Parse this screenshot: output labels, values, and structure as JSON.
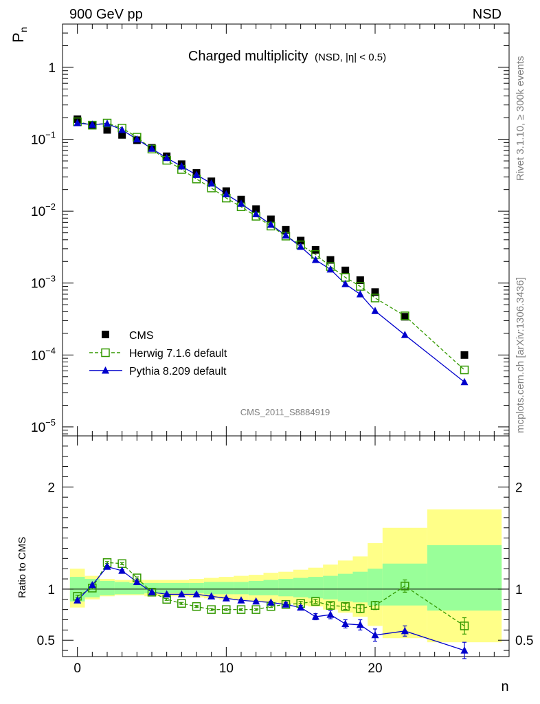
{
  "header": {
    "left_label": "900 GeV pp",
    "right_label": "NSD"
  },
  "side_labels": {
    "rivet": "Rivet 3.1.10, ≥ 300k events",
    "mcplots": "mcplots.cern.ch [arXiv:1306.3436]"
  },
  "watermark": "CMS_2011_S8884919",
  "colors": {
    "cms": "#000000",
    "herwig": "#339900",
    "pythia": "#0000cc",
    "band_inner": "#99ff99",
    "band_outer": "#ffff88"
  },
  "chart_data": [
    {
      "type": "scatter",
      "title": "Charged multiplicity",
      "title_suffix": "(NSD, |η| < 0.5)",
      "xlabel": "n",
      "ylabel": "P",
      "ylabel_sub": "n",
      "yscale": "log",
      "xlim": [
        -1,
        29
      ],
      "ylim": [
        7.5e-06,
        4
      ],
      "y_ticks": [
        {
          "value": 1e-05,
          "base": "10",
          "exp": "−5"
        },
        {
          "value": 0.0001,
          "base": "10",
          "exp": "−4"
        },
        {
          "value": 0.001,
          "base": "10",
          "exp": "−3"
        },
        {
          "value": 0.01,
          "base": "10",
          "exp": "−2"
        },
        {
          "value": 0.1,
          "base": "10",
          "exp": "−1"
        },
        {
          "value": 1,
          "base": "1",
          "exp": ""
        }
      ],
      "legend_position": "bottom-left",
      "series": [
        {
          "name": "CMS",
          "marker": "filled-square",
          "x": [
            0,
            1,
            2,
            3,
            4,
            5,
            6,
            7,
            8,
            9,
            10,
            11,
            12,
            13,
            14,
            15,
            16,
            17,
            18,
            19,
            20,
            22,
            26
          ],
          "y": [
            0.19,
            0.155,
            0.135,
            0.115,
            0.097,
            0.076,
            0.058,
            0.045,
            0.034,
            0.026,
            0.019,
            0.0145,
            0.0107,
            0.0077,
            0.0055,
            0.0039,
            0.0029,
            0.0021,
            0.0015,
            0.0011,
            0.00075,
            0.00034,
            0.0001
          ]
        },
        {
          "name": "Herwig 7.1.6 default",
          "marker": "open-square",
          "line": "dashed",
          "x": [
            0,
            1,
            2,
            3,
            4,
            5,
            6,
            7,
            8,
            9,
            10,
            11,
            12,
            13,
            14,
            15,
            16,
            17,
            18,
            19,
            20,
            22,
            26
          ],
          "y": [
            0.175,
            0.157,
            0.168,
            0.143,
            0.107,
            0.073,
            0.051,
            0.038,
            0.028,
            0.021,
            0.0152,
            0.0115,
            0.0085,
            0.0062,
            0.0045,
            0.0034,
            0.0025,
            0.0017,
            0.0012,
            0.0009,
            0.00062,
            0.00035,
            6.2e-05
          ]
        },
        {
          "name": "Pythia 8.209 default",
          "marker": "filled-triangle",
          "line": "solid",
          "x": [
            0,
            1,
            2,
            3,
            4,
            5,
            6,
            7,
            8,
            9,
            10,
            11,
            12,
            13,
            14,
            15,
            16,
            17,
            18,
            19,
            20,
            22,
            26
          ],
          "y": [
            0.168,
            0.16,
            0.165,
            0.135,
            0.1,
            0.074,
            0.055,
            0.042,
            0.032,
            0.0243,
            0.0172,
            0.0127,
            0.0091,
            0.0065,
            0.0046,
            0.0032,
            0.0021,
            0.00155,
            0.00097,
            0.0007,
            0.00041,
            0.00019,
            4.2e-05
          ]
        }
      ]
    },
    {
      "type": "line",
      "ylabel": "Ratio to CMS",
      "xlabel": "n",
      "xlim": [
        -1,
        29
      ],
      "ylim": [
        0.34,
        2.5
      ],
      "x_ticks": [
        0,
        10,
        20
      ],
      "y_ticks": [
        {
          "value": 0.5,
          "label": "0.5"
        },
        {
          "value": 1,
          "label": "1"
        },
        {
          "value": 2,
          "label": "2"
        }
      ],
      "reference_line": 1,
      "bands": [
        {
          "x0": -0.5,
          "x1": 0.5,
          "inner": [
            0.88,
            1.12
          ],
          "outer": [
            0.82,
            1.2
          ]
        },
        {
          "x0": 0.5,
          "x1": 1.5,
          "inner": [
            0.92,
            1.1
          ],
          "outer": [
            0.9,
            1.13
          ]
        },
        {
          "x0": 1.5,
          "x1": 2.5,
          "inner": [
            0.94,
            1.08
          ],
          "outer": [
            0.93,
            1.1
          ]
        },
        {
          "x0": 2.5,
          "x1": 3.5,
          "inner": [
            0.95,
            1.07
          ],
          "outer": [
            0.94,
            1.09
          ]
        },
        {
          "x0": 3.5,
          "x1": 4.5,
          "inner": [
            0.95,
            1.06
          ],
          "outer": [
            0.94,
            1.09
          ]
        },
        {
          "x0": 4.5,
          "x1": 5.5,
          "inner": [
            0.96,
            1.06
          ],
          "outer": [
            0.93,
            1.09
          ]
        },
        {
          "x0": 5.5,
          "x1": 6.5,
          "inner": [
            0.96,
            1.06
          ],
          "outer": [
            0.93,
            1.09
          ]
        },
        {
          "x0": 6.5,
          "x1": 7.5,
          "inner": [
            0.96,
            1.06
          ],
          "outer": [
            0.93,
            1.09
          ]
        },
        {
          "x0": 7.5,
          "x1": 8.5,
          "inner": [
            0.96,
            1.06
          ],
          "outer": [
            0.92,
            1.1
          ]
        },
        {
          "x0": 8.5,
          "x1": 9.5,
          "inner": [
            0.95,
            1.07
          ],
          "outer": [
            0.91,
            1.11
          ]
        },
        {
          "x0": 9.5,
          "x1": 10.5,
          "inner": [
            0.95,
            1.07
          ],
          "outer": [
            0.9,
            1.12
          ]
        },
        {
          "x0": 10.5,
          "x1": 11.5,
          "inner": [
            0.95,
            1.07
          ],
          "outer": [
            0.89,
            1.13
          ]
        },
        {
          "x0": 11.5,
          "x1": 12.5,
          "inner": [
            0.94,
            1.08
          ],
          "outer": [
            0.88,
            1.14
          ]
        },
        {
          "x0": 12.5,
          "x1": 13.5,
          "inner": [
            0.94,
            1.09
          ],
          "outer": [
            0.87,
            1.16
          ]
        },
        {
          "x0": 13.5,
          "x1": 14.5,
          "inner": [
            0.93,
            1.1
          ],
          "outer": [
            0.86,
            1.17
          ]
        },
        {
          "x0": 14.5,
          "x1": 15.5,
          "inner": [
            0.92,
            1.11
          ],
          "outer": [
            0.84,
            1.19
          ]
        },
        {
          "x0": 15.5,
          "x1": 16.5,
          "inner": [
            0.91,
            1.12
          ],
          "outer": [
            0.83,
            1.21
          ]
        },
        {
          "x0": 16.5,
          "x1": 17.5,
          "inner": [
            0.9,
            1.13
          ],
          "outer": [
            0.8,
            1.24
          ]
        },
        {
          "x0": 17.5,
          "x1": 18.5,
          "inner": [
            0.88,
            1.15
          ],
          "outer": [
            0.77,
            1.28
          ]
        },
        {
          "x0": 18.5,
          "x1": 19.5,
          "inner": [
            0.87,
            1.17
          ],
          "outer": [
            0.73,
            1.32
          ]
        },
        {
          "x0": 19.5,
          "x1": 20.5,
          "inner": [
            0.84,
            1.2
          ],
          "outer": [
            0.64,
            1.45
          ]
        },
        {
          "x0": 20.5,
          "x1": 23.5,
          "inner": [
            0.84,
            1.25
          ],
          "outer": [
            0.52,
            1.6
          ]
        },
        {
          "x0": 23.5,
          "x1": 28.5,
          "inner": [
            0.79,
            1.43
          ],
          "outer": [
            0.48,
            1.78
          ]
        }
      ],
      "series": [
        {
          "name": "Herwig 7.1.6 default",
          "x": [
            0,
            1,
            2,
            3,
            4,
            5,
            6,
            7,
            8,
            9,
            10,
            11,
            12,
            13,
            14,
            15,
            16,
            17,
            18,
            19,
            20,
            22,
            26
          ],
          "y": [
            0.93,
            1.01,
            1.26,
            1.25,
            1.11,
            0.97,
            0.9,
            0.86,
            0.83,
            0.8,
            0.8,
            0.8,
            0.8,
            0.83,
            0.85,
            0.86,
            0.88,
            0.84,
            0.83,
            0.81,
            0.84,
            1.03,
            0.64
          ],
          "err": [
            0.01,
            0.01,
            0.01,
            0.01,
            0.01,
            0.01,
            0.01,
            0.01,
            0.01,
            0.01,
            0.01,
            0.01,
            0.01,
            0.01,
            0.01,
            0.02,
            0.02,
            0.03,
            0.03,
            0.04,
            0.04,
            0.06,
            0.08
          ]
        },
        {
          "name": "Pythia 8.209 default",
          "x": [
            0,
            1,
            2,
            3,
            4,
            5,
            6,
            7,
            8,
            9,
            10,
            11,
            12,
            13,
            14,
            15,
            16,
            17,
            18,
            19,
            20,
            22,
            26
          ],
          "y": [
            0.89,
            1.04,
            1.22,
            1.18,
            1.07,
            0.97,
            0.95,
            0.95,
            0.95,
            0.93,
            0.91,
            0.89,
            0.88,
            0.87,
            0.85,
            0.82,
            0.73,
            0.75,
            0.66,
            0.65,
            0.55,
            0.59,
            0.4
          ],
          "err": [
            0.01,
            0.01,
            0.01,
            0.01,
            0.01,
            0.01,
            0.01,
            0.01,
            0.01,
            0.01,
            0.01,
            0.01,
            0.01,
            0.01,
            0.02,
            0.02,
            0.03,
            0.04,
            0.04,
            0.05,
            0.06,
            0.05,
            0.08
          ]
        }
      ]
    }
  ]
}
